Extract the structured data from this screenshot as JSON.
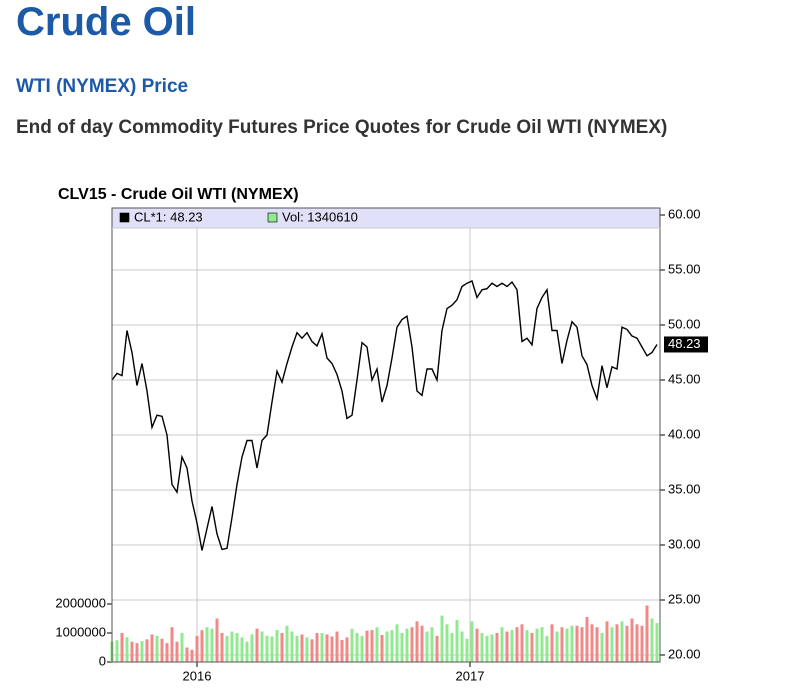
{
  "header": {
    "title": "Crude Oil",
    "subtitle": "WTI (NYMEX) Price",
    "description": "End of day Commodity Futures Price Quotes for Crude Oil WTI (NYMEX)"
  },
  "chart_data": {
    "type": "line",
    "title": "CLV15 - Crude Oil WTI (NYMEX)",
    "legend": [
      "CL*1: 48.23",
      "Vol: 1340610"
    ],
    "legend_colors": [
      "#000000",
      "#90e890"
    ],
    "legend_band": "#e0e0f8",
    "x": [
      0,
      1,
      2,
      3,
      4,
      5,
      6,
      7,
      8,
      9,
      10,
      11,
      12,
      13,
      14,
      15,
      16,
      17,
      18,
      19,
      20,
      21,
      22,
      23,
      24,
      25,
      26,
      27,
      28,
      29,
      30,
      31,
      32,
      33,
      34,
      35,
      36,
      37,
      38,
      39,
      40,
      41,
      42,
      43,
      44,
      45,
      46,
      47,
      48,
      49,
      50,
      51,
      52,
      53,
      54,
      55,
      56,
      57,
      58,
      59,
      60,
      61,
      62,
      63,
      64,
      65,
      66,
      67,
      68,
      69,
      70,
      71,
      72,
      73,
      74,
      75,
      76,
      77,
      78,
      79,
      80,
      81,
      82,
      83,
      84,
      85,
      86,
      87,
      88,
      89,
      90,
      91,
      92,
      93,
      94,
      95,
      96,
      97,
      98,
      99,
      100,
      101,
      102,
      103,
      104,
      105,
      106,
      107,
      108,
      109
    ],
    "xlim": [
      0,
      109.6
    ],
    "xticks": [
      {
        "value": 17,
        "label": "2016"
      },
      {
        "value": 71.6,
        "label": "2017"
      }
    ],
    "series": [
      {
        "color": "#000000",
        "axis": "y2",
        "values": [
          45.0,
          45.6,
          45.4,
          49.5,
          47.5,
          44.5,
          46.5,
          44.0,
          40.7,
          41.8,
          41.7,
          40.0,
          35.5,
          34.8,
          38.0,
          37.0,
          34.0,
          32.0,
          29.5,
          31.5,
          33.5,
          31.0,
          29.6,
          29.7,
          32.5,
          35.5,
          38.0,
          39.5,
          39.5,
          37.0,
          39.5,
          40.0,
          43.0,
          45.8,
          44.8,
          46.5,
          48.0,
          49.3,
          48.8,
          49.3,
          48.5,
          48.1,
          49.2,
          47.0,
          46.5,
          45.5,
          44.0,
          41.5,
          41.8,
          45.0,
          48.4,
          48.0,
          45.0,
          46.0,
          43.0,
          44.5,
          47.0,
          49.8,
          50.5,
          50.8,
          48.0,
          44.0,
          43.6,
          46.0,
          46.0,
          45.0,
          49.5,
          51.5,
          51.8,
          52.3,
          53.5,
          53.8,
          54.0,
          52.5,
          53.2,
          53.3,
          53.8,
          53.5,
          53.8,
          53.5,
          53.9,
          53.2,
          48.5,
          48.8,
          48.2,
          51.5,
          52.5,
          53.2,
          49.5,
          49.5,
          46.5,
          48.6,
          50.3,
          49.8,
          47.2,
          46.4,
          44.5,
          43.3,
          46.3,
          44.3,
          46.2,
          46.0,
          49.8,
          49.6,
          49.0,
          48.8,
          48.0,
          47.2,
          47.5,
          48.23
        ]
      },
      {
        "type": "bar",
        "up_color": "#90e890",
        "down_color": "#f08888",
        "values": [
          700000,
          750000,
          1000000,
          850000,
          700000,
          650000,
          720000,
          780000,
          950000,
          900000,
          800000,
          650000,
          1200000,
          700000,
          1000000,
          500000,
          420000,
          900000,
          1100000,
          1200000,
          1150000,
          1500000,
          1000000,
          900000,
          1050000,
          1000000,
          850000,
          700000,
          950000,
          1150000,
          1050000,
          900000,
          880000,
          1100000,
          1000000,
          1250000,
          1050000,
          900000,
          950000,
          850000,
          780000,
          1000000,
          1000000,
          950000,
          880000,
          1050000,
          760000,
          850000,
          1150000,
          1000000,
          900000,
          1080000,
          1100000,
          1200000,
          930000,
          1050000,
          1100000,
          1300000,
          1000000,
          1150000,
          1200000,
          1400000,
          1250000,
          1050000,
          1200000,
          900000,
          1600000,
          1300000,
          1000000,
          1450000,
          1050000,
          800000,
          1400000,
          1150000,
          1000000,
          900000,
          950000,
          1000000,
          1200000,
          1050000,
          1100000,
          1200000,
          1300000,
          1100000,
          1000000,
          1150000,
          1200000,
          900000,
          1300000,
          1050000,
          1200000,
          1150000,
          1250000,
          1250000,
          1200000,
          1550000,
          1300000,
          1200000,
          1000000,
          1400000,
          1200000,
          1300000,
          1400000,
          1250000,
          1500000,
          1300000,
          1250000,
          1950000,
          1500000,
          1340610
        ]
      }
    ],
    "ylim": [
      0,
      2000000
    ],
    "yticks": [
      0,
      1000000,
      2000000
    ],
    "y2lim": [
      20,
      60
    ],
    "y2ticks": [
      {
        "value": 20,
        "label": "20.00"
      },
      {
        "value": 25,
        "label": "25.00"
      },
      {
        "value": 30,
        "label": "30.00"
      },
      {
        "value": 35,
        "label": "35.00"
      },
      {
        "value": 40,
        "label": "40.00"
      },
      {
        "value": 45,
        "label": "45.00"
      },
      {
        "value": 50,
        "label": "50.00"
      },
      {
        "value": 55,
        "label": "55.00"
      },
      {
        "value": 60,
        "label": "60.00"
      }
    ],
    "grid": true
  }
}
